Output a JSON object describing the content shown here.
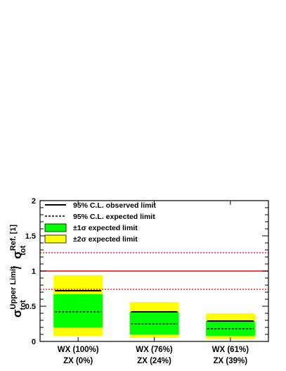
{
  "chart_data": {
    "type": "bar",
    "title": "",
    "xlabel": "",
    "ylabel": {
      "num_symbol": "σ",
      "num_sub": "tot",
      "num_sup": "Upper Limit",
      "slash": "/",
      "den_symbol": "σ",
      "den_sub": "tot",
      "den_sup": "Ref. [1]"
    },
    "ylim": [
      0,
      2
    ],
    "yticks": [
      "0",
      "0.5",
      "1",
      "1.5",
      "2"
    ],
    "categories": [
      {
        "line1": "WX (100%)",
        "line2": "ZX (0%)"
      },
      {
        "line1": "WX (76%)",
        "line2": "ZX (24%)"
      },
      {
        "line1": "WX (61%)",
        "line2": "ZX (39%)"
      }
    ],
    "observed": [
      0.72,
      0.42,
      0.29
    ],
    "expected": [
      0.42,
      0.25,
      0.18
    ],
    "band_1sigma": [
      [
        0.2,
        0.67
      ],
      [
        0.1,
        0.42
      ],
      [
        0.08,
        0.29
      ]
    ],
    "band_2sigma": [
      [
        0.08,
        0.94
      ],
      [
        0.05,
        0.56
      ],
      [
        0.04,
        0.4
      ]
    ],
    "reference": {
      "value": 1.0,
      "lower": 0.74,
      "upper": 1.26
    },
    "legend": [
      {
        "label": "95% C.L. observed limit",
        "style": "solid"
      },
      {
        "label": "95% C.L. expected limit",
        "style": "dashed"
      },
      {
        "label": "±1σ expected limit",
        "style": "box",
        "color": "#00ff00"
      },
      {
        "label": "±2σ expected limit",
        "style": "box",
        "color": "#ffff00"
      }
    ],
    "legend_placement": "top-left",
    "grid": false,
    "colors": {
      "one_sigma": "#00ff00",
      "two_sigma": "#ffff00",
      "reference": "#ff0000",
      "limit": "#000000"
    }
  }
}
